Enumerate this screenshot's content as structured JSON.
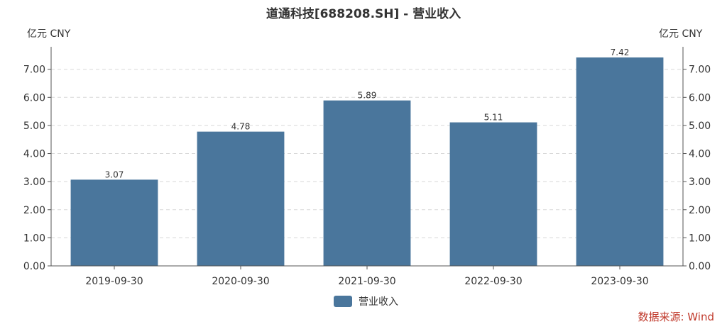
{
  "chart_data": {
    "type": "bar",
    "title": "道通科技[688208.SH] - 营业收入",
    "unit_left": "亿元  CNY",
    "unit_right": "亿元  CNY",
    "categories": [
      "2019-09-30",
      "2020-09-30",
      "2021-09-30",
      "2022-09-30",
      "2023-09-30"
    ],
    "series": [
      {
        "name": "营业收入",
        "values": [
          3.07,
          4.78,
          5.89,
          5.11,
          7.42
        ]
      }
    ],
    "value_labels": [
      "3.07",
      "4.78",
      "5.89",
      "5.11",
      "7.42"
    ],
    "ylim": [
      0,
      7.8
    ],
    "yticks": [
      0,
      1,
      2,
      3,
      4,
      5,
      6,
      7
    ],
    "ytick_labels": [
      "0.00",
      "1.00",
      "2.00",
      "3.00",
      "4.00",
      "5.00",
      "6.00",
      "7.00"
    ],
    "grid": true,
    "legend_position": "bottom-center",
    "bar_color": "#4a769c",
    "source": "数据来源: Wind",
    "source_color": "#c0392b"
  }
}
